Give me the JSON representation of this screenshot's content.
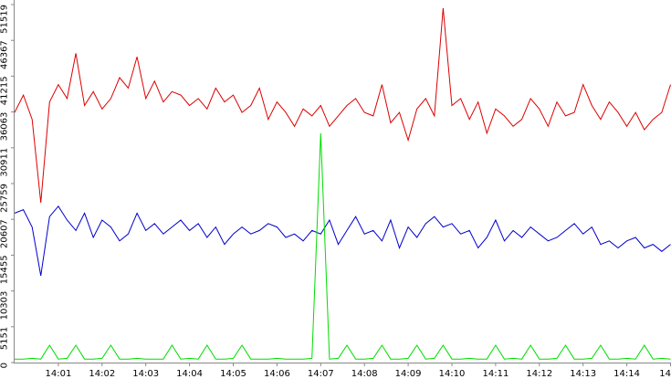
{
  "chart_data": {
    "type": "line",
    "x": [
      0,
      0.2,
      0.4,
      0.6,
      0.8,
      1,
      1.2,
      1.4,
      1.6,
      1.8,
      2,
      2.2,
      2.4,
      2.6,
      2.8,
      3,
      3.2,
      3.4,
      3.6,
      3.8,
      4,
      4.2,
      4.4,
      4.6,
      4.8,
      5,
      5.2,
      5.4,
      5.6,
      5.8,
      6,
      6.2,
      6.4,
      6.6,
      6.8,
      7,
      7.2,
      7.4,
      7.6,
      7.8,
      8,
      8.2,
      8.4,
      8.6,
      8.8,
      9,
      9.2,
      9.4,
      9.6,
      9.8,
      10,
      10.2,
      10.4,
      10.6,
      10.8,
      11,
      11.2,
      11.4,
      11.6,
      11.8,
      12,
      12.2,
      12.4,
      12.6,
      12.8,
      13,
      13.2,
      13.4,
      13.6,
      13.8,
      14,
      14.2,
      14.4,
      14.6,
      14.8,
      15
    ],
    "series": [
      {
        "color": "#dd0000",
        "values": [
          36000,
          38500,
          35000,
          23000,
          37500,
          40000,
          38000,
          44500,
          37000,
          39000,
          36500,
          38000,
          41000,
          39500,
          44000,
          38000,
          40500,
          37500,
          39000,
          38500,
          37000,
          38000,
          36500,
          39500,
          37500,
          38500,
          36000,
          37000,
          39500,
          35000,
          37500,
          36000,
          34000,
          36500,
          35500,
          37000,
          34000,
          35500,
          37000,
          38000,
          36000,
          35500,
          40000,
          34500,
          36000,
          32000,
          36500,
          38000,
          35500,
          51000,
          37000,
          38000,
          35000,
          37500,
          33000,
          36500,
          35500,
          34000,
          35000,
          38000,
          36500,
          34000,
          37500,
          35500,
          36000,
          40000,
          37000,
          35000,
          37500,
          36000,
          34000,
          36000,
          33500,
          35000,
          36000,
          40000
        ]
      },
      {
        "color": "#0000cc",
        "values": [
          21500,
          22000,
          19500,
          12500,
          21000,
          22500,
          20500,
          19000,
          21500,
          18000,
          20500,
          19500,
          17500,
          18500,
          21500,
          19000,
          20000,
          18500,
          19500,
          20500,
          19000,
          20000,
          18000,
          19500,
          17000,
          18500,
          19500,
          18500,
          19000,
          20000,
          19500,
          18000,
          18500,
          17500,
          19000,
          18500,
          20500,
          17000,
          19000,
          21000,
          18500,
          19000,
          17500,
          20500,
          16500,
          19500,
          18000,
          20000,
          21000,
          19500,
          20000,
          18500,
          19000,
          16500,
          18000,
          20500,
          17500,
          19000,
          18000,
          19500,
          18500,
          17500,
          18000,
          19000,
          20000,
          18500,
          19500,
          17000,
          17500,
          16500,
          17500,
          18000,
          16500,
          17000,
          16000,
          17000
        ]
      },
      {
        "color": "#00dd00",
        "values": [
          500,
          500,
          600,
          500,
          2500,
          500,
          600,
          2500,
          500,
          500,
          600,
          2500,
          500,
          500,
          600,
          500,
          500,
          500,
          2500,
          500,
          600,
          500,
          2500,
          500,
          500,
          600,
          2500,
          500,
          500,
          500,
          600,
          500,
          500,
          500,
          600,
          33000,
          500,
          600,
          2500,
          500,
          500,
          600,
          2500,
          500,
          500,
          600,
          2500,
          500,
          600,
          2500,
          500,
          500,
          600,
          500,
          500,
          2500,
          500,
          600,
          500,
          2500,
          500,
          500,
          600,
          2500,
          500,
          500,
          600,
          2500,
          500,
          500,
          600,
          500,
          2500,
          500,
          600,
          500
        ]
      }
    ],
    "xlim": [
      0,
      15
    ],
    "xticks": [
      {
        "value": 1,
        "label": "14:01"
      },
      {
        "value": 2,
        "label": "14:02"
      },
      {
        "value": 3,
        "label": "14:03"
      },
      {
        "value": 4,
        "label": "14:04"
      },
      {
        "value": 5,
        "label": "14:05"
      },
      {
        "value": 6,
        "label": "14:06"
      },
      {
        "value": 7,
        "label": "14:07"
      },
      {
        "value": 8,
        "label": "14:08"
      },
      {
        "value": 9,
        "label": "14:09"
      },
      {
        "value": 10,
        "label": "14:10"
      },
      {
        "value": 11,
        "label": "14:11"
      },
      {
        "value": 12,
        "label": "14:12"
      },
      {
        "value": 13,
        "label": "14:13"
      },
      {
        "value": 14,
        "label": "14:14"
      },
      {
        "value": 15,
        "label": "14"
      }
    ],
    "ylim": [
      0,
      51519
    ],
    "yticks": [
      0,
      5151,
      10303,
      15455,
      20607,
      25759,
      30911,
      36063,
      41215,
      46367,
      51519
    ]
  }
}
